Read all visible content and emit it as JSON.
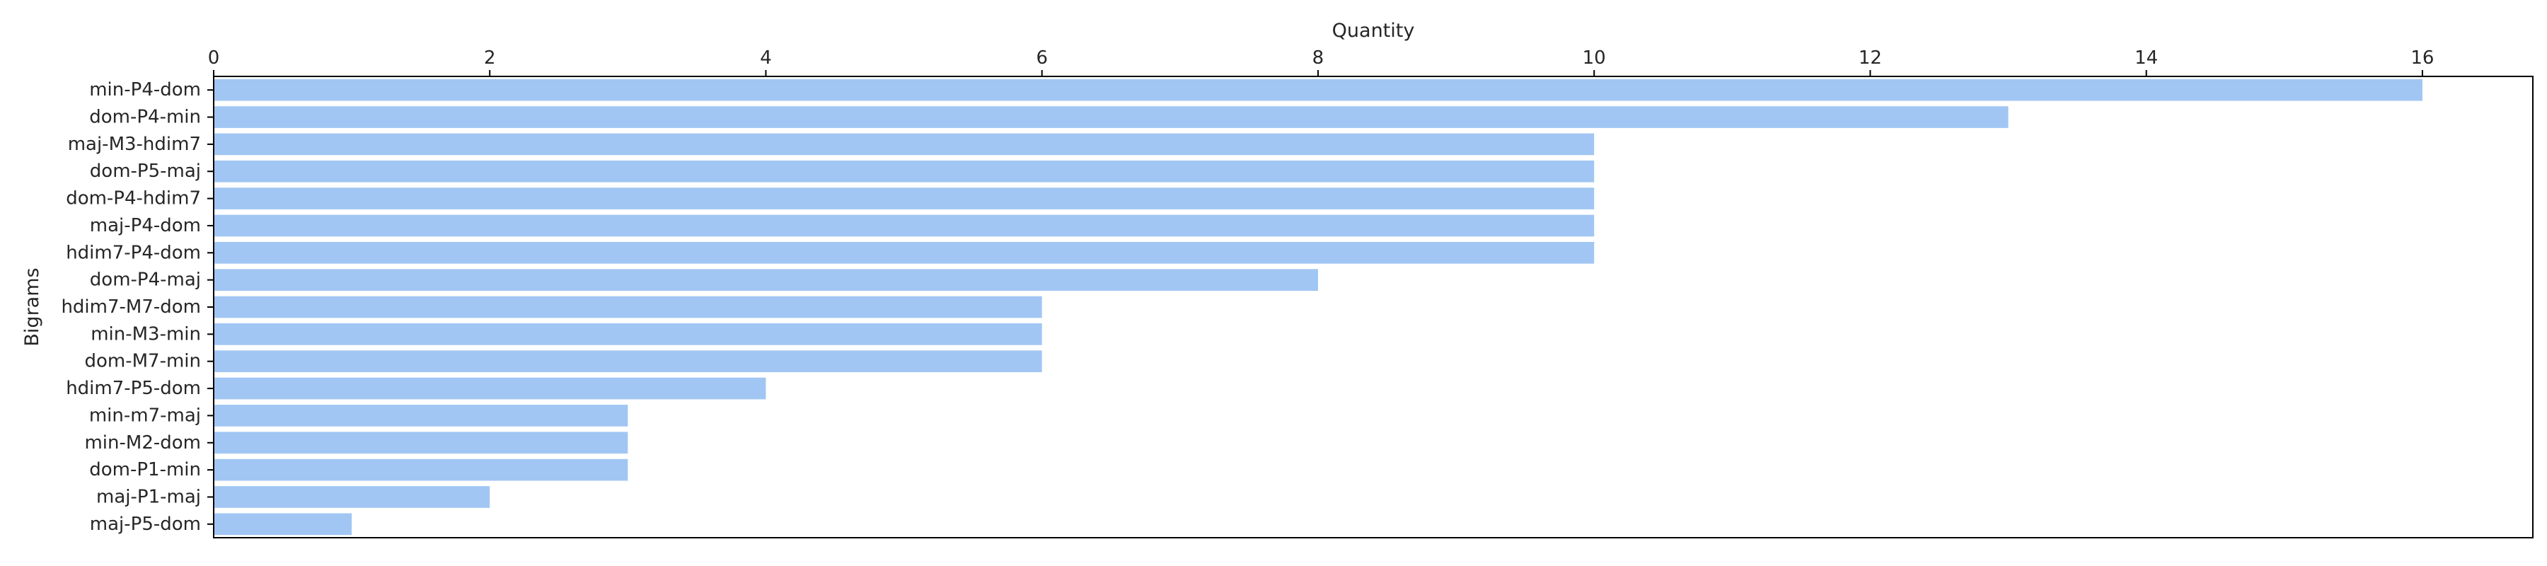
{
  "chart_data": {
    "type": "bar",
    "orientation": "horizontal",
    "xlabel": "Quantity",
    "ylabel": "Bigrams",
    "xlim": [
      0,
      16.8
    ],
    "xticks": [
      0,
      2,
      4,
      6,
      8,
      10,
      12,
      14,
      16
    ],
    "x_axis_position": "top",
    "grid": false,
    "bar_color": "#a1c6f3",
    "categories": [
      "min-P4-dom",
      "dom-P4-min",
      "maj-M3-hdim7",
      "dom-P5-maj",
      "dom-P4-hdim7",
      "maj-P4-dom",
      "hdim7-P4-dom",
      "dom-P4-maj",
      "hdim7-M7-dom",
      "min-M3-min",
      "dom-M7-min",
      "hdim7-P5-dom",
      "min-m7-maj",
      "min-M2-dom",
      "dom-P1-min",
      "maj-P1-maj",
      "maj-P5-dom"
    ],
    "values": [
      16,
      13,
      10,
      10,
      10,
      10,
      10,
      8,
      6,
      6,
      6,
      4,
      3,
      3,
      3,
      2,
      1
    ]
  }
}
